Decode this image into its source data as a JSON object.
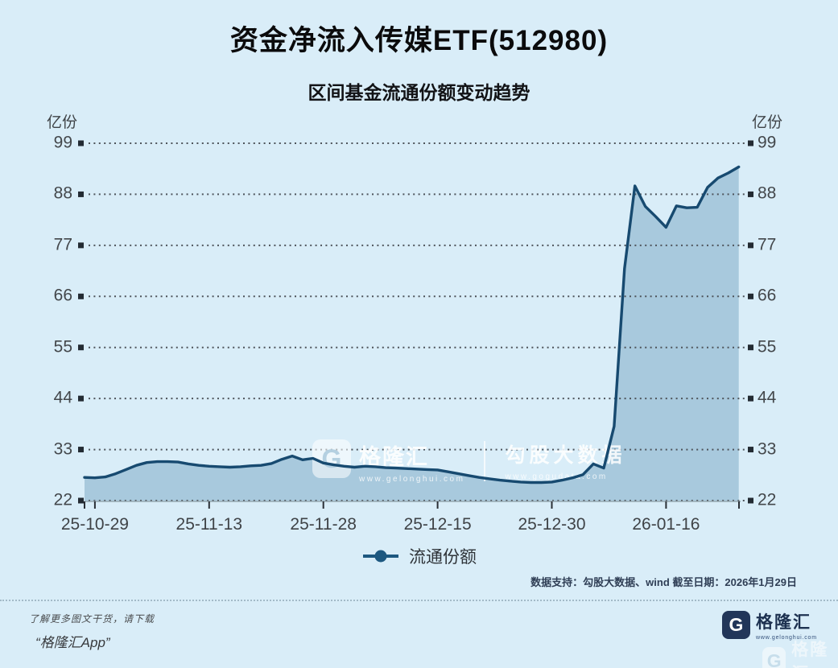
{
  "header": {
    "title": "资金净流入传媒ETF(512980)",
    "subtitle": "区间基金流通份额变动趋势"
  },
  "chart_data": {
    "type": "area",
    "title": "区间基金流通份额变动趋势",
    "unit_label": "亿份",
    "ylim": [
      22,
      99
    ],
    "y_ticks": [
      99,
      88,
      77,
      66,
      55,
      44,
      33,
      22
    ],
    "grid": "dotted-horizontal",
    "legend_position": "bottom-center",
    "x_tick_labels": [
      "25-10-29",
      "25-11-13",
      "25-11-28",
      "25-12-15",
      "25-12-30",
      "26-01-16"
    ],
    "x_tick_indices": [
      1,
      12,
      23,
      34,
      45,
      56
    ],
    "series": [
      {
        "name": "流通份额",
        "values": [
          27.0,
          26.9,
          27.1,
          27.8,
          28.7,
          29.6,
          30.2,
          30.4,
          30.4,
          30.3,
          29.9,
          29.6,
          29.4,
          29.3,
          29.2,
          29.3,
          29.5,
          29.6,
          30.0,
          30.9,
          31.6,
          30.8,
          31.1,
          30.1,
          29.7,
          29.4,
          29.2,
          29.4,
          29.3,
          29.1,
          29.0,
          28.9,
          28.8,
          28.7,
          28.6,
          28.2,
          27.8,
          27.4,
          27.0,
          26.7,
          26.4,
          26.2,
          26.0,
          25.9,
          25.9,
          26.0,
          26.4,
          26.9,
          27.6,
          29.9,
          29.0,
          38.0,
          72.0,
          89.8,
          85.4,
          83.2,
          80.9,
          85.5,
          85.1,
          85.2,
          89.5,
          91.5,
          92.6,
          93.9
        ]
      }
    ]
  },
  "legend": {
    "label": "流通份额"
  },
  "watermark": {
    "brand_letter": "G",
    "brand": "格隆汇",
    "brand_url": "www.gelonghui.com",
    "partner": "勾股大数据",
    "partner_url": "www.gogudata.com"
  },
  "footer": {
    "source_line": "数据支持：勾股大数据、wind 截至日期：2026年1月29日",
    "promo_line1": "了解更多图文干货，请下载",
    "promo_line2": "“格隆汇App”",
    "logo_letter": "G",
    "logo_text": "格隆汇",
    "logo_url": "www.gelonghui.com"
  },
  "colors": {
    "background": "#d9edf8",
    "line": "#174a70",
    "area_fill": "#a8c9dd",
    "gridline": "#4e545b",
    "axis_marker": "#232b33",
    "baseline": "#8fa3ad",
    "legend_marker": "#1d5880"
  }
}
